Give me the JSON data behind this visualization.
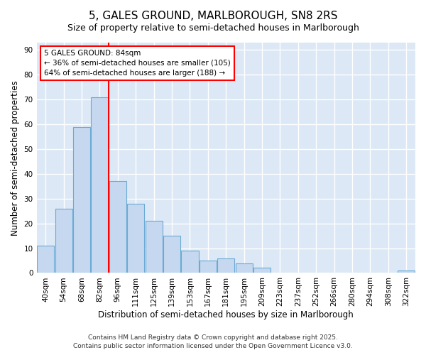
{
  "title": "5, GALES GROUND, MARLBOROUGH, SN8 2RS",
  "subtitle": "Size of property relative to semi-detached houses in Marlborough",
  "xlabel": "Distribution of semi-detached houses by size in Marlborough",
  "ylabel": "Number of semi-detached properties",
  "categories": [
    "40sqm",
    "54sqm",
    "68sqm",
    "82sqm",
    "96sqm",
    "111sqm",
    "125sqm",
    "139sqm",
    "153sqm",
    "167sqm",
    "181sqm",
    "195sqm",
    "209sqm",
    "223sqm",
    "237sqm",
    "252sqm",
    "266sqm",
    "280sqm",
    "294sqm",
    "308sqm",
    "322sqm"
  ],
  "values": [
    11,
    26,
    59,
    71,
    37,
    28,
    21,
    15,
    9,
    5,
    6,
    4,
    2,
    0,
    0,
    0,
    0,
    0,
    0,
    0,
    1
  ],
  "bar_color": "#c5d8ef",
  "bar_edge_color": "#6aaad4",
  "property_line_x": 3.5,
  "annotation_text_line1": "5 GALES GROUND: 84sqm",
  "annotation_text_line2": "← 36% of semi-detached houses are smaller (105)",
  "annotation_text_line3": "64% of semi-detached houses are larger (188) →",
  "footer": "Contains HM Land Registry data © Crown copyright and database right 2025.\nContains public sector information licensed under the Open Government Licence v3.0.",
  "ylim": [
    0,
    93
  ],
  "yticks": [
    0,
    10,
    20,
    30,
    40,
    50,
    60,
    70,
    80,
    90
  ],
  "fig_background": "#ffffff",
  "plot_background": "#dce8f5",
  "grid_color": "#ffffff",
  "title_fontsize": 11,
  "subtitle_fontsize": 9,
  "axis_label_fontsize": 8.5,
  "tick_fontsize": 7.5,
  "footer_fontsize": 6.5
}
